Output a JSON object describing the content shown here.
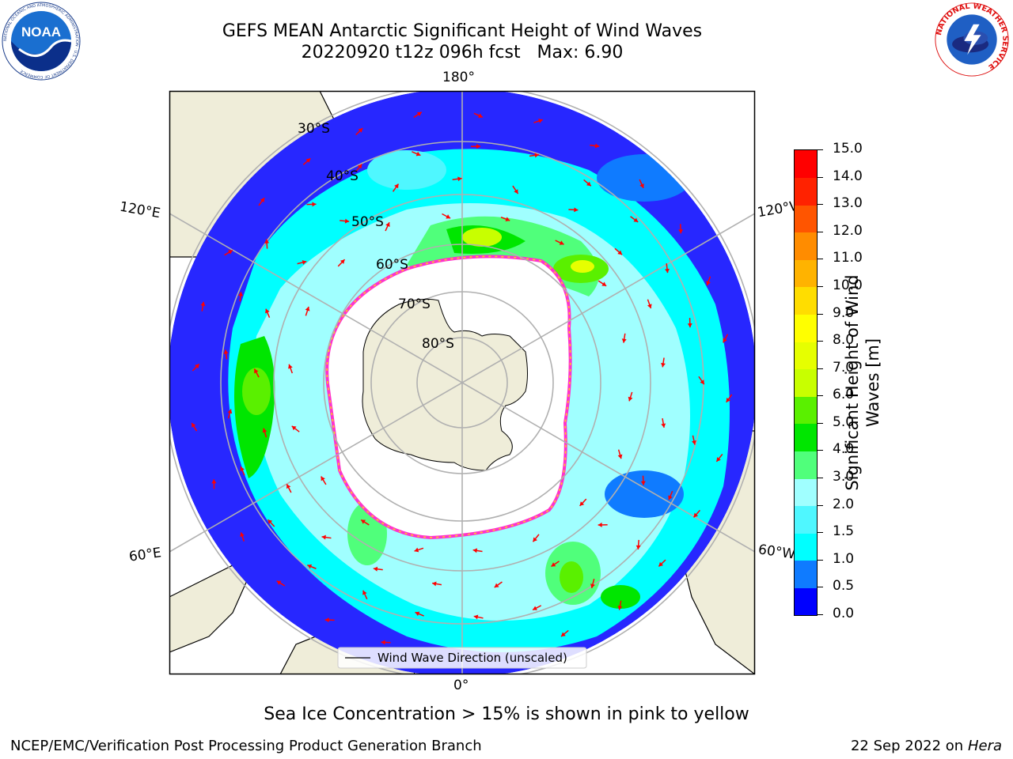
{
  "header": {
    "title_line1": "GEFS MEAN Antarctic Significant Height of Wind Waves",
    "title_line2": "20220920 t12z 096h fcst   Max: 6.90"
  },
  "logos": {
    "noaa": {
      "text": "NOAA",
      "ring_text": "NATIONAL OCEANIC AND ATMOSPHERIC ADMINISTRATION · U.S. DEPARTMENT OF COMMERCE",
      "icon": "noaa-logo"
    },
    "nws": {
      "ring_text": "NATIONAL WEATHER SERVICE",
      "icon": "nws-logo"
    }
  },
  "map": {
    "projection": "south-polar-stereographic",
    "lon_labels": {
      "top": "180°",
      "bottom": "0°",
      "left_upper": "120°E",
      "left_lower": "60°E",
      "right_upper": "120°W",
      "right_lower": "60°W"
    },
    "lat_labels": [
      "30°S",
      "40°S",
      "50°S",
      "60°S",
      "70°S",
      "80°S"
    ],
    "legend_label": "Wind Wave Direction (unscaled)",
    "arrow_color": "#ff0000",
    "land_color": "#efedd9",
    "sea_ice_colors": [
      "#ff33cc",
      "#ffd11a"
    ]
  },
  "colorbar": {
    "title": "Significant Height of Wind Waves [m]",
    "title_line1": "Significant Height of Wind",
    "title_line2": "Waves [m]",
    "ticks": [
      "0.0",
      "0.5",
      "1.0",
      "1.5",
      "2.0",
      "3.0",
      "4.0",
      "5.0",
      "6.0",
      "7.0",
      "8.0",
      "9.0",
      "10.0",
      "11.0",
      "12.0",
      "13.0",
      "14.0",
      "15.0"
    ],
    "colors": [
      "#0000ff",
      "#0f7bff",
      "#00ffff",
      "#4ff7ff",
      "#a0ffff",
      "#50ff7b",
      "#00e600",
      "#5af000",
      "#c8ff00",
      "#e6ff00",
      "#ffff00",
      "#ffdd00",
      "#ffb300",
      "#ff8c00",
      "#ff5500",
      "#ff2200",
      "#ff0000"
    ]
  },
  "caption": "Sea Ice Concentration > 15% is shown in pink to yellow",
  "footer": {
    "left": "NCEP/EMC/Verification Post Processing Product Generation Branch",
    "right_prefix": "22 Sep 2022 on",
    "right_host": "Hera"
  }
}
